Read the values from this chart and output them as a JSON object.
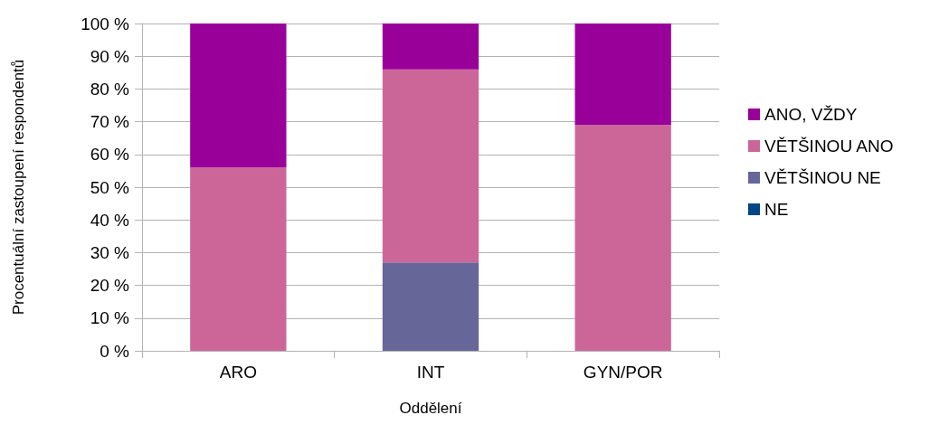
{
  "chart_data": {
    "type": "bar",
    "stacked": true,
    "xlabel": "Oddělení",
    "ylabel": "Procentuální zastoupení respondentů",
    "categories": [
      "ARO",
      "INT",
      "GYN/POR"
    ],
    "series": [
      {
        "name": "NE",
        "color": "#004586",
        "values": [
          0,
          0,
          0
        ]
      },
      {
        "name": "VĚTŠINOU NE",
        "color": "#666699",
        "values": [
          0,
          27,
          0
        ]
      },
      {
        "name": "VĚTŠINOU ANO",
        "color": "#cc6699",
        "values": [
          56,
          59,
          69
        ]
      },
      {
        "name": "ANO, VŽDY",
        "color": "#990099",
        "values": [
          44,
          14,
          31
        ]
      }
    ],
    "ylim": [
      0,
      100
    ],
    "yticks": [
      {
        "value": 0,
        "label": "0 %"
      },
      {
        "value": 10,
        "label": "10 %"
      },
      {
        "value": 20,
        "label": "20 %"
      },
      {
        "value": 30,
        "label": "30 %"
      },
      {
        "value": 40,
        "label": "40 %"
      },
      {
        "value": 50,
        "label": "50 %"
      },
      {
        "value": 60,
        "label": "60 %"
      },
      {
        "value": 70,
        "label": "70 %"
      },
      {
        "value": 80,
        "label": "80 %"
      },
      {
        "value": 90,
        "label": "90 %"
      },
      {
        "value": 100,
        "label": "100 %"
      }
    ],
    "grid": "y",
    "legend": "right"
  }
}
